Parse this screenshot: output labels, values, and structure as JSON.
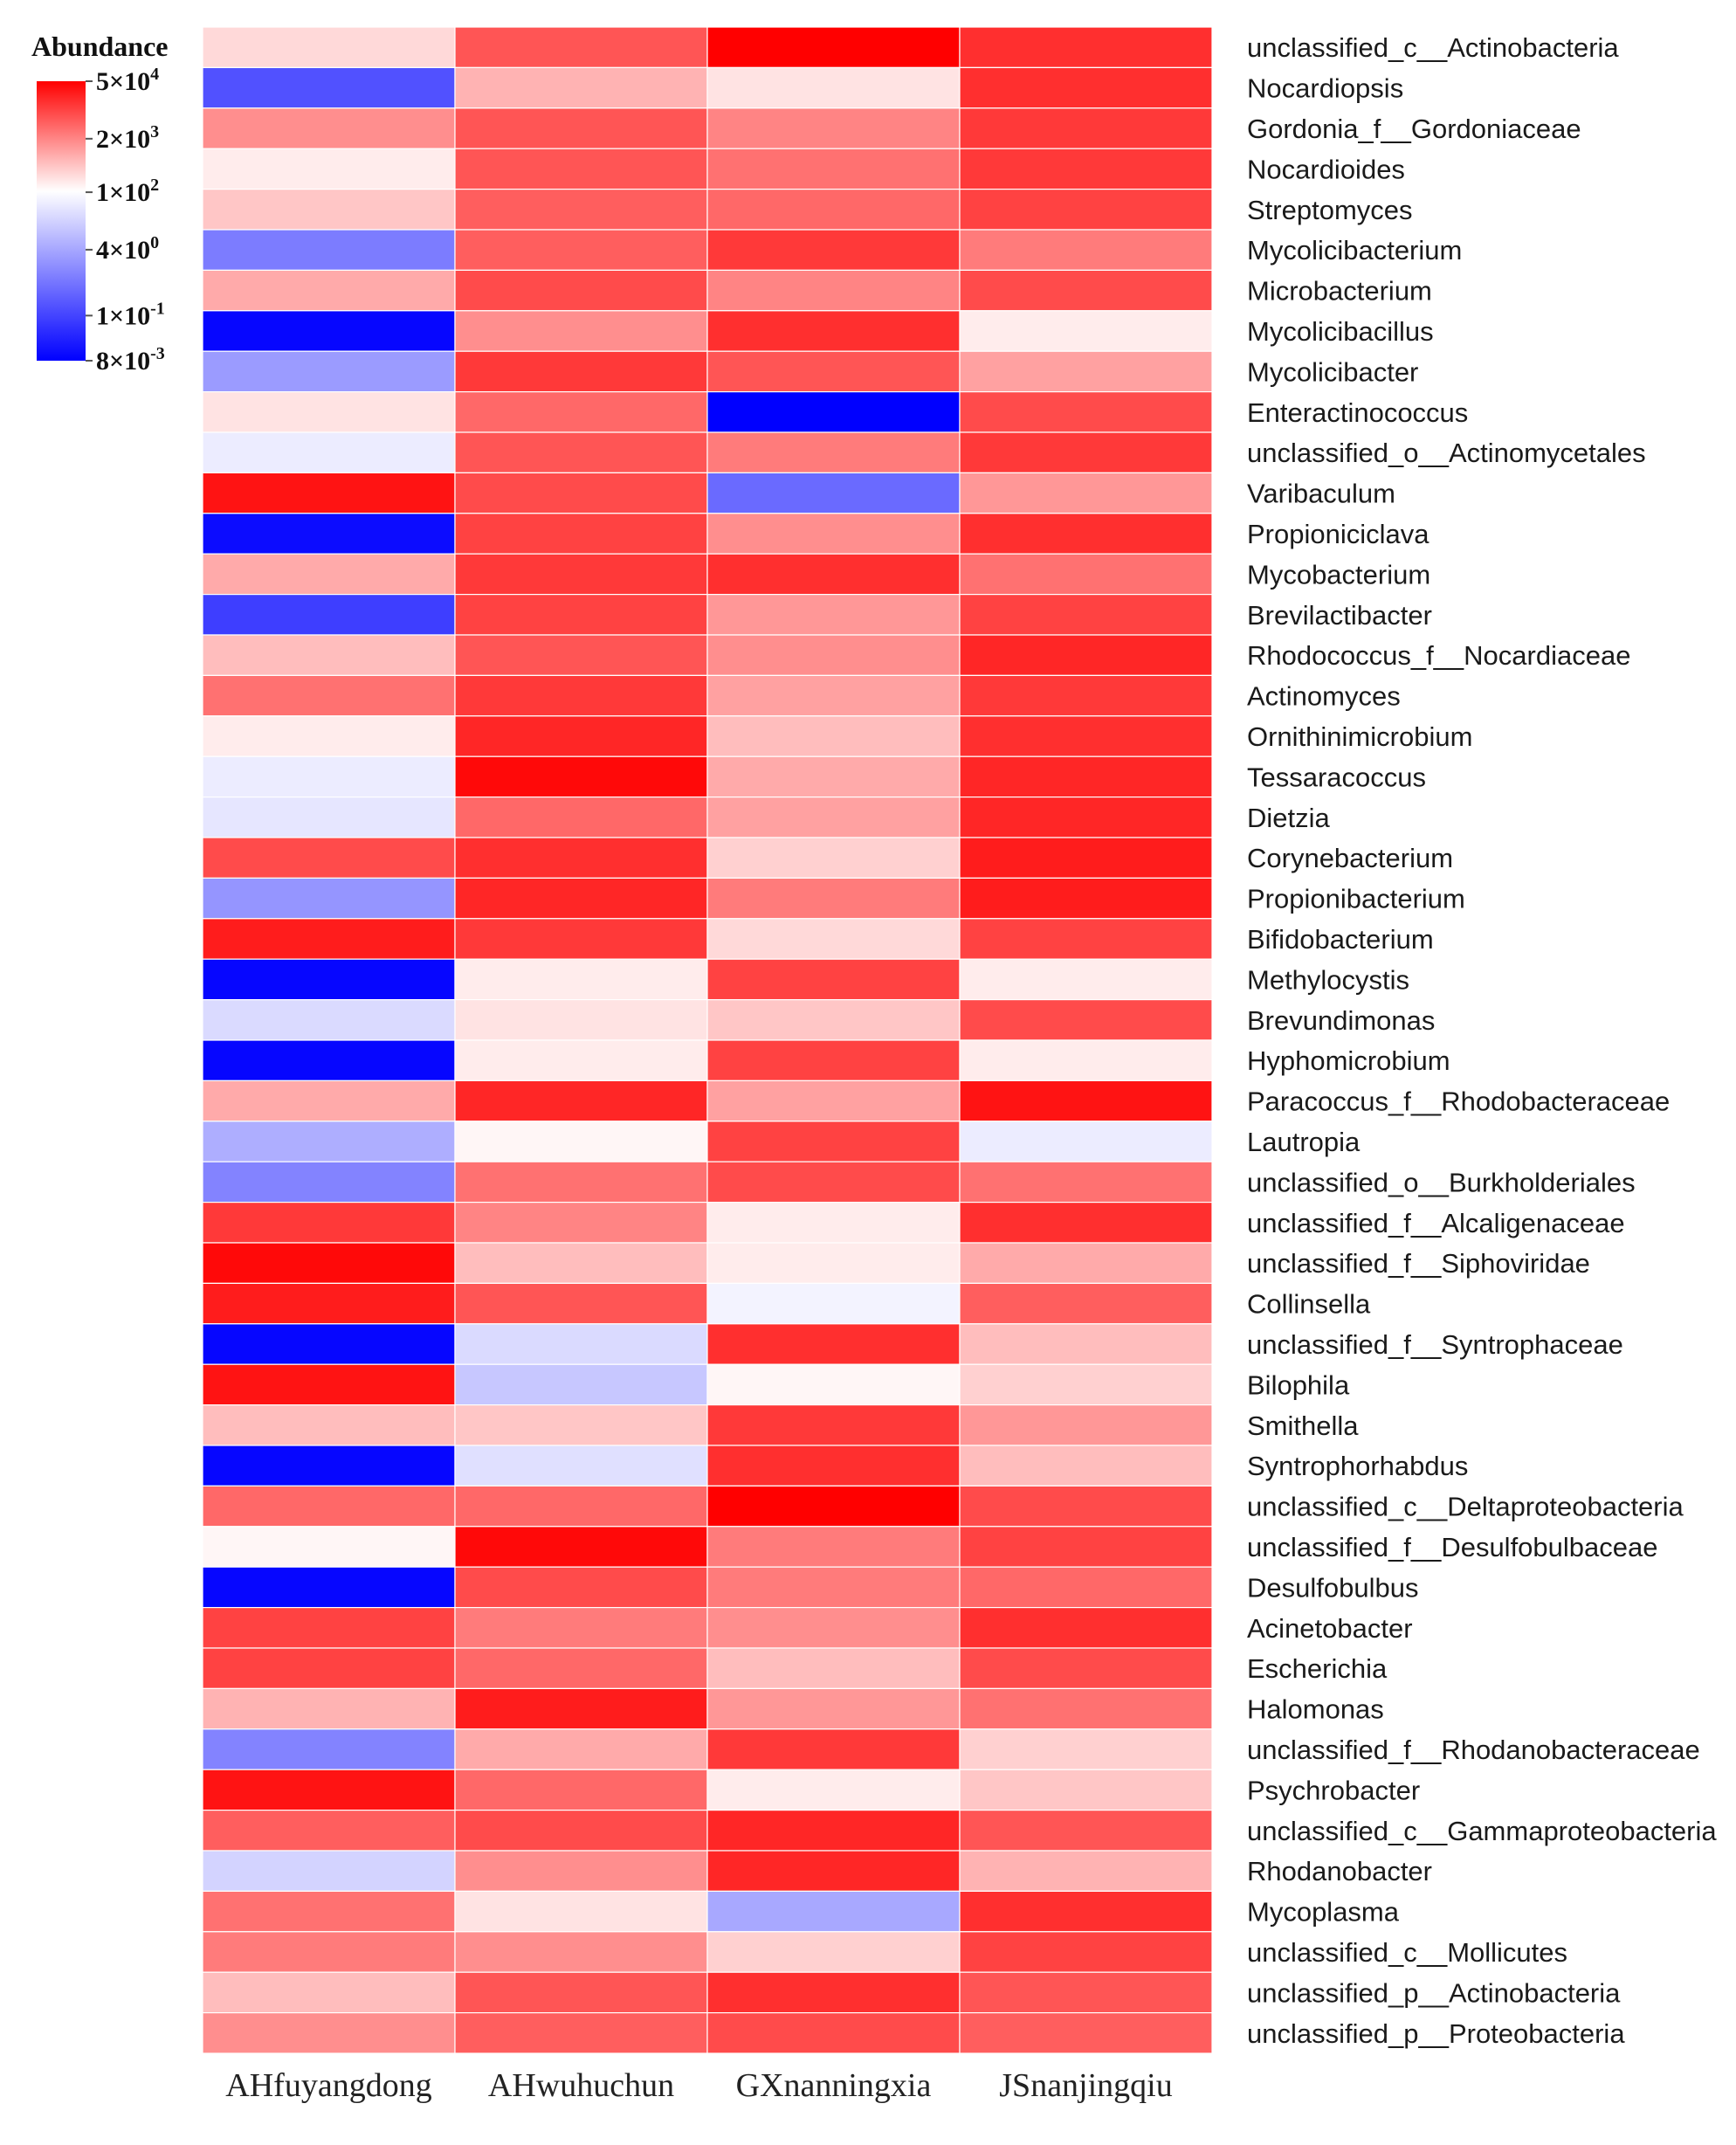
{
  "chart_data": {
    "type": "heatmap",
    "title": "",
    "legend": {
      "title": "Abundance",
      "ticks": [
        {
          "base": "5×10",
          "exp": "4",
          "log": 4.699
        },
        {
          "base": "2×10",
          "exp": "3",
          "log": 3.301
        },
        {
          "base": "1×10",
          "exp": "2",
          "log": 2.0
        },
        {
          "base": "4×10",
          "exp": "0",
          "log": 0.602
        },
        {
          "base": "1×10",
          "exp": "-1",
          "log": -1.0
        },
        {
          "base": "8×10",
          "exp": "-3",
          "log": -2.097
        }
      ],
      "range_log10": [
        -2.097,
        4.699
      ],
      "colors": {
        "low": "#0000ff",
        "mid": "#ffffff",
        "high": "#ff0000"
      },
      "mid_log10": 2.0
    },
    "columns": [
      "AHfuyangdong",
      "AHwuhuchun",
      "GXnanningxia",
      "JSnanjingqiu"
    ],
    "rows": [
      "unclassified_c__Actinobacteria",
      "Nocardiopsis",
      "Gordonia_f__Gordoniaceae",
      "Nocardioides",
      "Streptomyces",
      "Mycolicibacterium",
      "Microbacterium",
      "Mycolicibacillus",
      "Mycolicibacter",
      "Enteractinococcus",
      "unclassified_o__Actinomycetales",
      "Varibaculum",
      "Propioniciclava",
      "Mycobacterium",
      "Brevilactibacter",
      "Rhodococcus_f__Nocardiaceae",
      "Actinomyces",
      "Ornithinimicrobium",
      "Tessaracoccus",
      "Dietzia",
      "Corynebacterium",
      "Propionibacterium",
      "Bifidobacterium",
      "Methylocystis",
      "Brevundimonas",
      "Hyphomicrobium",
      "Paracoccus_f__Rhodobacteraceae",
      "Lautropia",
      "unclassified_o__Burkholderiales",
      "unclassified_f__Alcaligenaceae",
      "unclassified_f__Siphoviridae",
      "Collinsella",
      "unclassified_f__Syntrophaceae",
      "Bilophila",
      "Smithella",
      "Syntrophorhabdus",
      "unclassified_c__Deltaproteobacteria",
      "unclassified_f__Desulfobulbaceae",
      "Desulfobulbus",
      "Acinetobacter",
      "Escherichia",
      "Halomonas",
      "unclassified_f__Rhodanobacteraceae",
      "Psychrobacter",
      "unclassified_c__Gammaproteobacteria",
      "Rhodanobacter",
      "Mycoplasma",
      "unclassified_c__Mollicutes",
      "unclassified_p__Actinobacteria",
      "unclassified_p__Proteobacteria"
    ],
    "values_log10": [
      [
        2.4,
        3.8,
        4.7,
        4.2
      ],
      [
        -0.8,
        2.8,
        2.3,
        4.2
      ],
      [
        3.2,
        3.8,
        3.3,
        4.1
      ],
      [
        2.2,
        3.8,
        3.5,
        4.1
      ],
      [
        2.6,
        3.7,
        3.6,
        4.0
      ],
      [
        -0.1,
        3.7,
        4.1,
        3.4
      ],
      [
        2.9,
        3.9,
        3.3,
        3.9
      ],
      [
        -2.0,
        3.2,
        4.2,
        2.2
      ],
      [
        0.4,
        4.1,
        3.8,
        3.0
      ],
      [
        2.3,
        3.6,
        -2.1,
        3.9
      ],
      [
        1.7,
        3.8,
        3.4,
        4.1
      ],
      [
        4.5,
        3.9,
        -0.4,
        3.1
      ],
      [
        -1.9,
        4.0,
        3.2,
        4.2
      ],
      [
        2.9,
        4.1,
        4.2,
        3.5
      ],
      [
        -1.1,
        4.0,
        3.1,
        4.0
      ],
      [
        2.7,
        3.8,
        3.2,
        4.3
      ],
      [
        3.5,
        4.1,
        3.0,
        4.1
      ],
      [
        2.2,
        4.3,
        2.7,
        4.2
      ],
      [
        1.7,
        4.6,
        2.9,
        4.3
      ],
      [
        1.6,
        3.6,
        3.0,
        4.3
      ],
      [
        3.9,
        4.2,
        2.5,
        4.4
      ],
      [
        0.3,
        4.3,
        3.4,
        4.4
      ],
      [
        4.4,
        4.1,
        2.4,
        4.0
      ],
      [
        -2.0,
        2.2,
        4.0,
        2.2
      ],
      [
        1.4,
        2.3,
        2.6,
        3.9
      ],
      [
        -2.0,
        2.2,
        4.0,
        2.2
      ],
      [
        2.9,
        4.3,
        3.0,
        4.5
      ],
      [
        0.7,
        2.1,
        4.0,
        1.7
      ],
      [
        0.0,
        3.5,
        3.9,
        3.5
      ],
      [
        4.1,
        3.3,
        2.2,
        4.2
      ],
      [
        4.6,
        2.7,
        2.2,
        2.9
      ],
      [
        4.4,
        3.8,
        1.8,
        3.7
      ],
      [
        -2.0,
        1.4,
        4.2,
        2.7
      ],
      [
        4.5,
        1.1,
        2.1,
        2.5
      ],
      [
        2.7,
        2.6,
        4.1,
        3.1
      ],
      [
        -2.0,
        1.5,
        4.2,
        2.7
      ],
      [
        3.6,
        3.6,
        4.7,
        3.9
      ],
      [
        2.1,
        4.6,
        3.4,
        4.0
      ],
      [
        -2.0,
        3.9,
        3.4,
        3.6
      ],
      [
        4.0,
        3.4,
        3.2,
        4.2
      ],
      [
        4.0,
        3.6,
        2.7,
        3.9
      ],
      [
        2.8,
        4.4,
        3.1,
        3.5
      ],
      [
        0.0,
        2.9,
        4.1,
        2.5
      ],
      [
        4.5,
        3.6,
        2.2,
        2.6
      ],
      [
        3.7,
        3.9,
        4.3,
        3.8
      ],
      [
        1.3,
        3.2,
        4.3,
        2.8
      ],
      [
        3.5,
        2.3,
        0.6,
        4.2
      ],
      [
        3.4,
        3.2,
        2.5,
        4.0
      ],
      [
        2.7,
        3.8,
        4.2,
        3.8
      ],
      [
        3.2,
        3.7,
        3.9,
        3.7
      ]
    ]
  }
}
